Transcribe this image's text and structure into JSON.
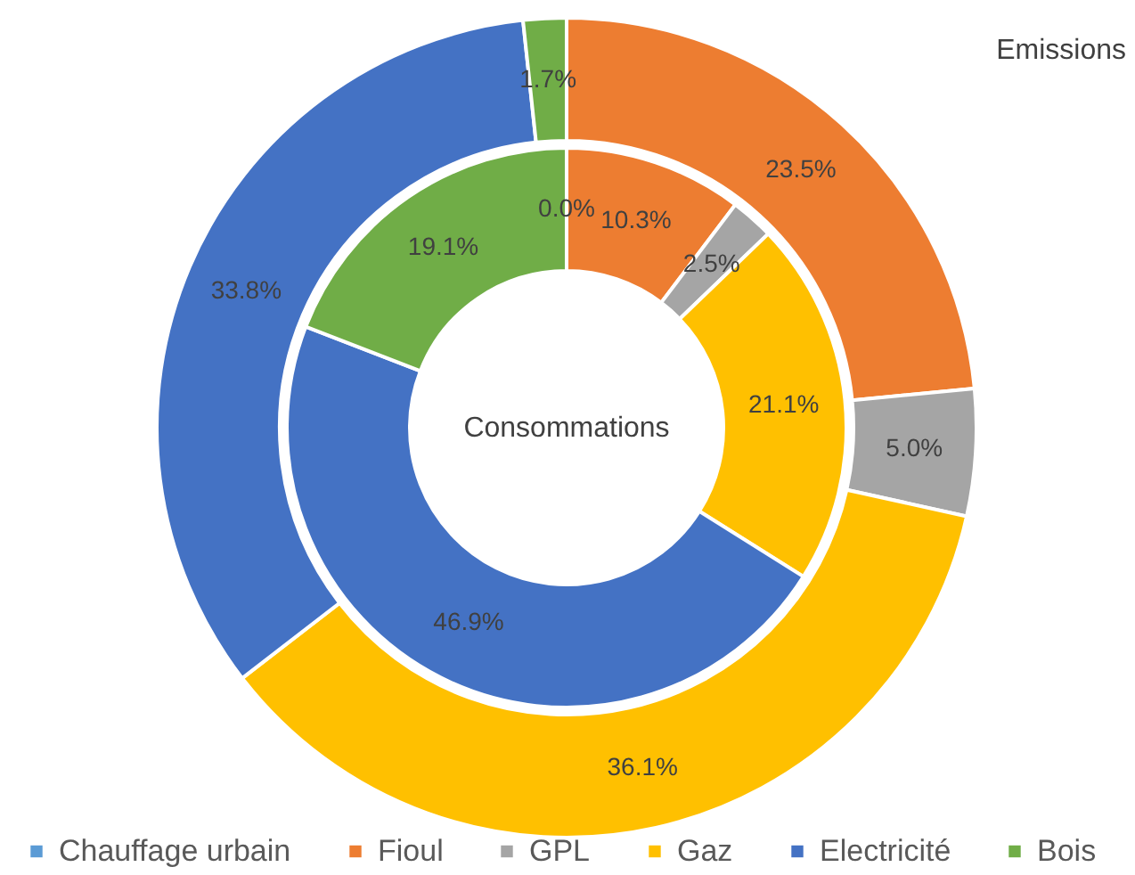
{
  "chart_data": {
    "type": "donut",
    "categories": [
      "Chauffage urbain",
      "Fioul",
      "GPL",
      "Gaz",
      "Electricité",
      "Bois"
    ],
    "colors": [
      "#5b9bd5",
      "#ed7d31",
      "#a5a5a5",
      "#ffc000",
      "#4472c4",
      "#70ad47"
    ],
    "series": [
      {
        "name": "Emissions",
        "values": [
          null,
          23.5,
          5.0,
          36.1,
          33.8,
          1.7
        ],
        "value_labels": [
          null,
          "23.5%",
          "5.0%",
          "36.1%",
          "33.8%",
          "1.7%"
        ]
      },
      {
        "name": "Consommations",
        "values": [
          0.0,
          10.3,
          2.5,
          21.1,
          46.9,
          19.1
        ],
        "value_labels": [
          "0.0%",
          "10.3%",
          "2.5%",
          "21.1%",
          "46.9%",
          "19.1%"
        ]
      }
    ],
    "legend": "bottom"
  }
}
